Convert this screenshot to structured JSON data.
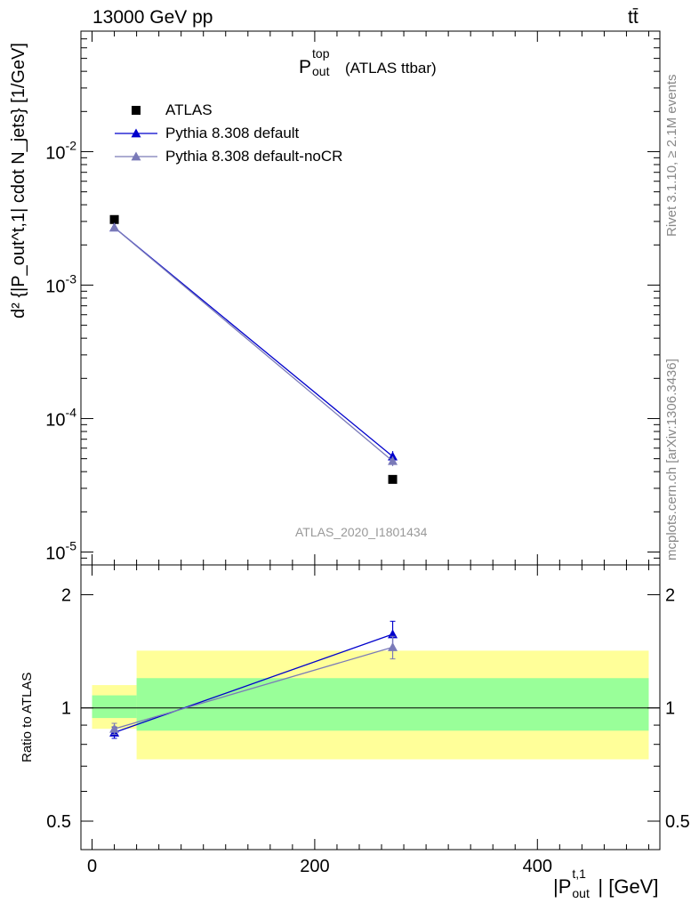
{
  "header": {
    "energy_label": "13000 GeV pp",
    "process_label": "tt̄"
  },
  "plot_title": {
    "main": "P",
    "sup": "top",
    "sub": "out",
    "suffix": "(ATLAS ttbar)"
  },
  "watermark": "ATLAS_2020_I1801434",
  "side_labels": {
    "rivet": "Rivet 3.1.10, ≥ 2.1M events",
    "mcplots": "mcplots.cern.ch [arXiv:1306.3436]"
  },
  "y_axis_label_upper": "d² {|P_out^t,1| cdot N_jets} [1/GeV]",
  "y_axis_label_lower": "Ratio to ATLAS",
  "x_axis_label": {
    "pre": "|P",
    "sup": "t,1",
    "sub": "out",
    "post": "| [GeV]"
  },
  "legend": [
    {
      "name": "ATLAS",
      "color": "#000000",
      "marker": "square"
    },
    {
      "name": "Pythia 8.308 default",
      "color": "#0000cc",
      "marker": "triangle"
    },
    {
      "name": "Pythia 8.308 default-noCR",
      "color": "#7a7ab8",
      "marker": "triangle"
    }
  ],
  "chart_data": [
    {
      "type": "scatter",
      "panel": "main",
      "y_scale": "log",
      "xlim": [
        -10,
        510
      ],
      "ylim": [
        8e-06,
        0.08
      ],
      "x_ticks": [
        "0",
        "200",
        "400"
      ],
      "y_ticks": [
        "10^-5",
        "10^-4",
        "10^-3",
        "10^-2"
      ],
      "series": [
        {
          "name": "ATLAS",
          "x": [
            20,
            270
          ],
          "y": [
            0.0031,
            3.5e-05
          ],
          "color": "#000000",
          "marker": "square"
        },
        {
          "name": "Pythia 8.308 default",
          "x": [
            20,
            270
          ],
          "y": [
            0.0027,
            5.2e-05
          ],
          "err": [
            0.0001,
            5e-06
          ],
          "color": "#0000cc",
          "marker": "triangle"
        },
        {
          "name": "Pythia 8.308 default-noCR",
          "x": [
            20,
            270
          ],
          "y": [
            0.0027,
            4.8e-05
          ],
          "err": [
            0.0001,
            4e-06
          ],
          "color": "#7a7ab8",
          "marker": "triangle"
        }
      ]
    },
    {
      "type": "scatter",
      "panel": "ratio",
      "y_scale": "log",
      "xlim": [
        -10,
        510
      ],
      "ylim": [
        0.42,
        2.4
      ],
      "y_ticks": [
        "0.5",
        "1",
        "2"
      ],
      "bands": [
        {
          "x0": 0,
          "x1": 40,
          "outer": [
            0.88,
            1.15
          ],
          "inner": [
            0.94,
            1.08
          ]
        },
        {
          "x0": 40,
          "x1": 500,
          "outer": [
            0.73,
            1.42
          ],
          "inner": [
            0.87,
            1.2
          ]
        }
      ],
      "series": [
        {
          "name": "Pythia 8.308 default",
          "x": [
            20,
            270
          ],
          "y": [
            0.86,
            1.57
          ],
          "err": [
            0.03,
            0.13
          ],
          "color": "#0000cc"
        },
        {
          "name": "Pythia 8.308 default-noCR",
          "x": [
            20,
            270
          ],
          "y": [
            0.88,
            1.45
          ],
          "err": [
            0.03,
            0.1
          ],
          "color": "#7a7ab8"
        }
      ]
    }
  ]
}
